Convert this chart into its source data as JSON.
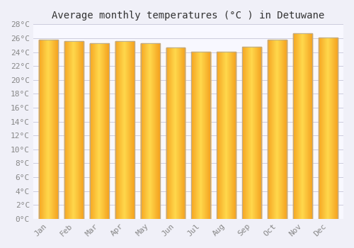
{
  "title": "Average monthly temperatures (°C ) in Detuwane",
  "months": [
    "Jan",
    "Feb",
    "Mar",
    "Apr",
    "May",
    "Jun",
    "Jul",
    "Aug",
    "Sep",
    "Oct",
    "Nov",
    "Dec"
  ],
  "values": [
    25.8,
    25.6,
    25.3,
    25.6,
    25.3,
    24.7,
    24.1,
    24.1,
    24.8,
    25.8,
    26.7,
    26.1
  ],
  "ylim": [
    0,
    28
  ],
  "ytick_step": 2,
  "background_color": "#F0F0F8",
  "plot_bg_color": "#F8F8FF",
  "grid_color": "#CCCCDD",
  "bar_color_left": "#F5A623",
  "bar_color_center": "#FFD94D",
  "bar_color_right": "#F5A623",
  "bar_edge_color": "#AAAAAA",
  "title_fontsize": 10,
  "tick_fontsize": 8,
  "tick_color": "#888888",
  "title_color": "#333333",
  "bar_width": 0.75,
  "gradient_steps": 100
}
